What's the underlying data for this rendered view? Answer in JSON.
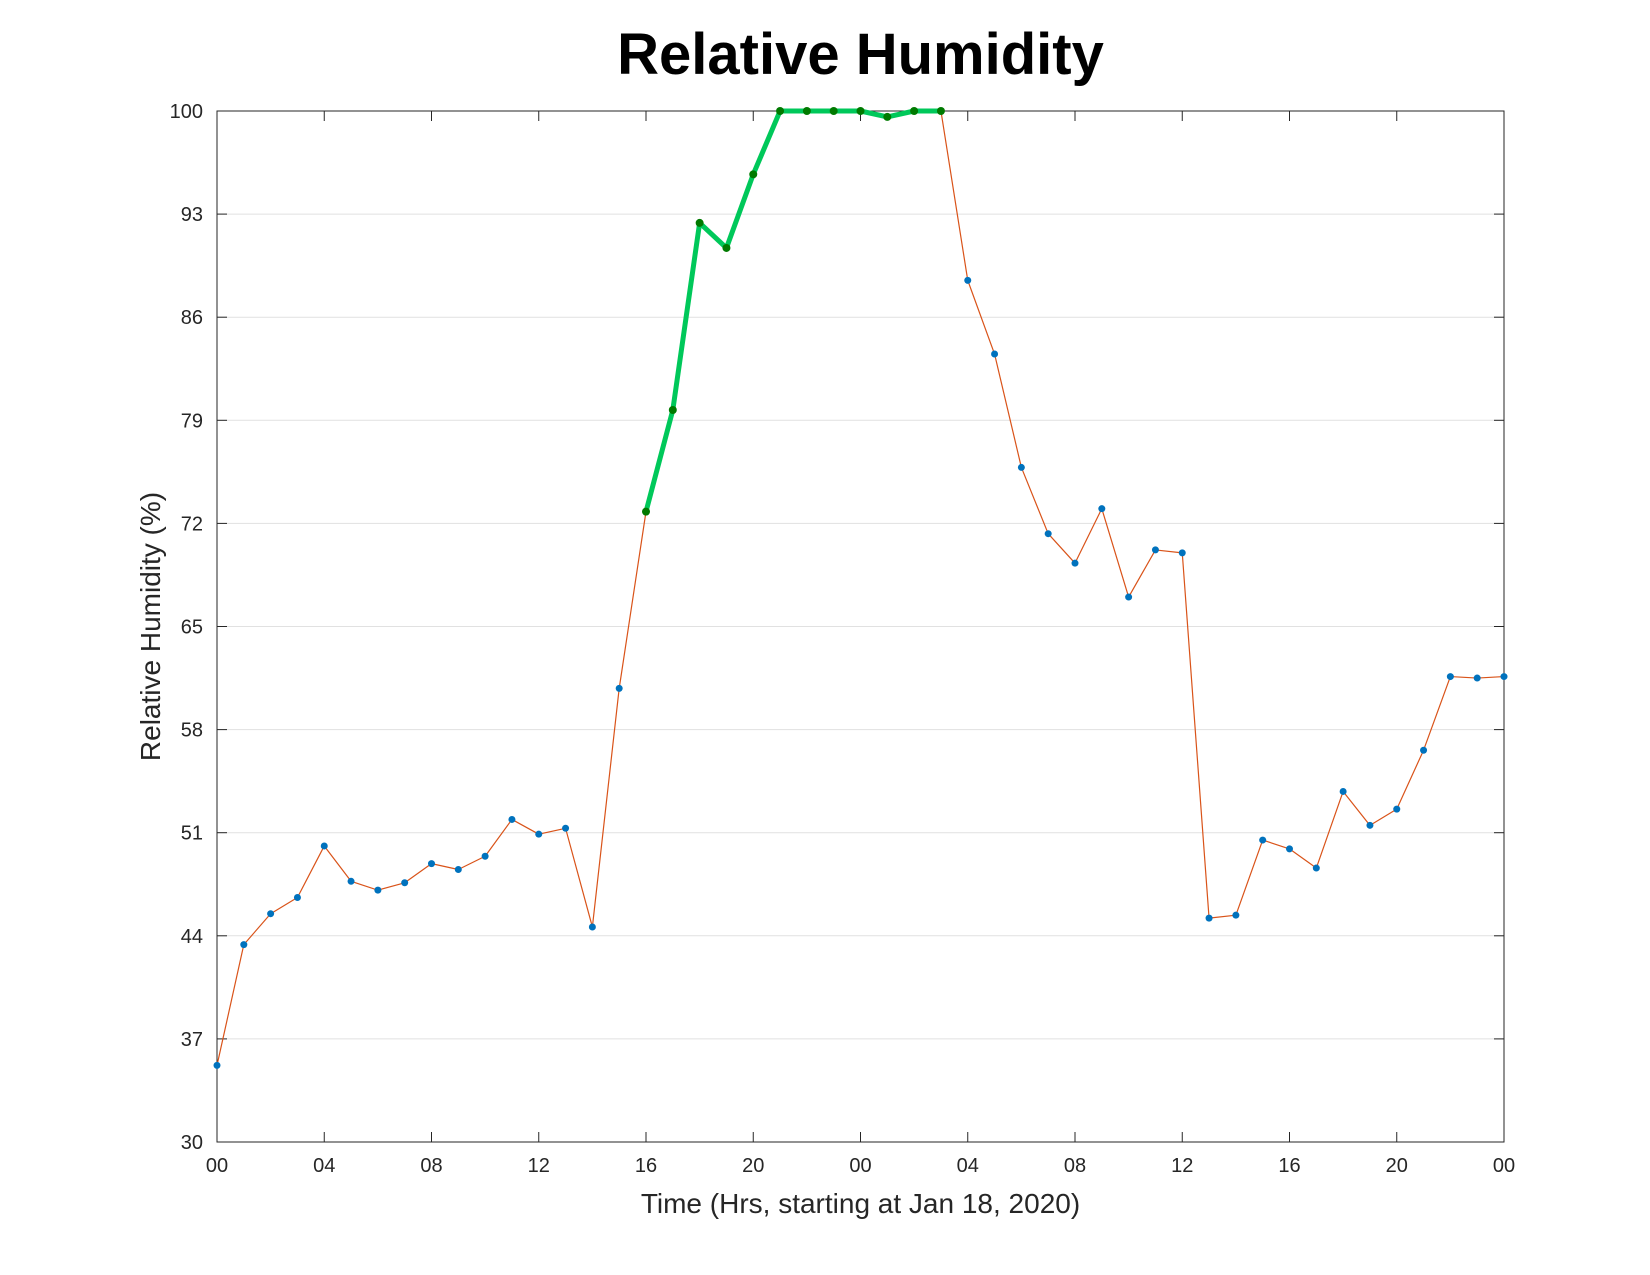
{
  "chart_data": {
    "type": "line",
    "title": "Relative Humidity",
    "xlabel": "Time (Hrs, starting at Jan 18, 2020)",
    "ylabel": "Relative Humidity (%)",
    "ylim": [
      30,
      100
    ],
    "xlim": [
      "2020-01-18 00:00",
      "2020-01-20 00:00"
    ],
    "x_ticks": [
      "00",
      "04",
      "08",
      "12",
      "16",
      "20",
      "00",
      "04",
      "08",
      "12",
      "16",
      "20",
      "00"
    ],
    "y_ticks": [
      "30",
      "37",
      "44",
      "51",
      "58",
      "65",
      "72",
      "79",
      "86",
      "93",
      "100"
    ],
    "grid": "horizontal",
    "x": [
      "2020-01-18 00:00",
      "2020-01-18 01:00",
      "2020-01-18 02:00",
      "2020-01-18 03:00",
      "2020-01-18 04:00",
      "2020-01-18 05:00",
      "2020-01-18 06:00",
      "2020-01-18 07:00",
      "2020-01-18 08:00",
      "2020-01-18 09:00",
      "2020-01-18 10:00",
      "2020-01-18 11:00",
      "2020-01-18 12:00",
      "2020-01-18 13:00",
      "2020-01-18 14:00",
      "2020-01-18 15:00",
      "2020-01-18 16:00",
      "2020-01-18 17:00",
      "2020-01-18 18:00",
      "2020-01-18 19:00",
      "2020-01-18 20:00",
      "2020-01-18 21:00",
      "2020-01-18 22:00",
      "2020-01-18 23:00",
      "2020-01-19 00:00",
      "2020-01-19 01:00",
      "2020-01-19 02:00",
      "2020-01-19 03:00",
      "2020-01-19 04:00",
      "2020-01-19 05:00",
      "2020-01-19 06:00",
      "2020-01-19 07:00",
      "2020-01-19 08:00",
      "2020-01-19 09:00",
      "2020-01-19 10:00",
      "2020-01-19 11:00",
      "2020-01-19 12:00",
      "2020-01-19 13:00",
      "2020-01-19 14:00",
      "2020-01-19 15:00",
      "2020-01-19 16:00",
      "2020-01-19 17:00",
      "2020-01-19 18:00",
      "2020-01-19 19:00",
      "2020-01-19 20:00",
      "2020-01-19 21:00",
      "2020-01-19 22:00",
      "2020-01-19 23:00",
      "2020-01-20 00:00"
    ],
    "series": [
      {
        "values": [
          35.2,
          43.4,
          45.5,
          46.6,
          50.1,
          47.7,
          47.1,
          47.6,
          48.9,
          48.5,
          49.4,
          51.9,
          50.9,
          51.3,
          44.6,
          60.8,
          72.8,
          79.7,
          92.4,
          90.7,
          95.7,
          100,
          100,
          100,
          100,
          99.6,
          100,
          100,
          88.5,
          83.5,
          75.8,
          71.3,
          69.3,
          73.0,
          67.0,
          70.2,
          70.0,
          45.2,
          45.4,
          50.5,
          49.9,
          48.6,
          53.8,
          51.5,
          52.6,
          56.6,
          61.6,
          61.5,
          61.6
        ],
        "color": "#D95319",
        "marker_color": "#0072BD"
      }
    ],
    "highlight": {
      "from_index": 16,
      "to_index": 27,
      "color": "#00C85A",
      "marker_color": "#007A00"
    }
  }
}
